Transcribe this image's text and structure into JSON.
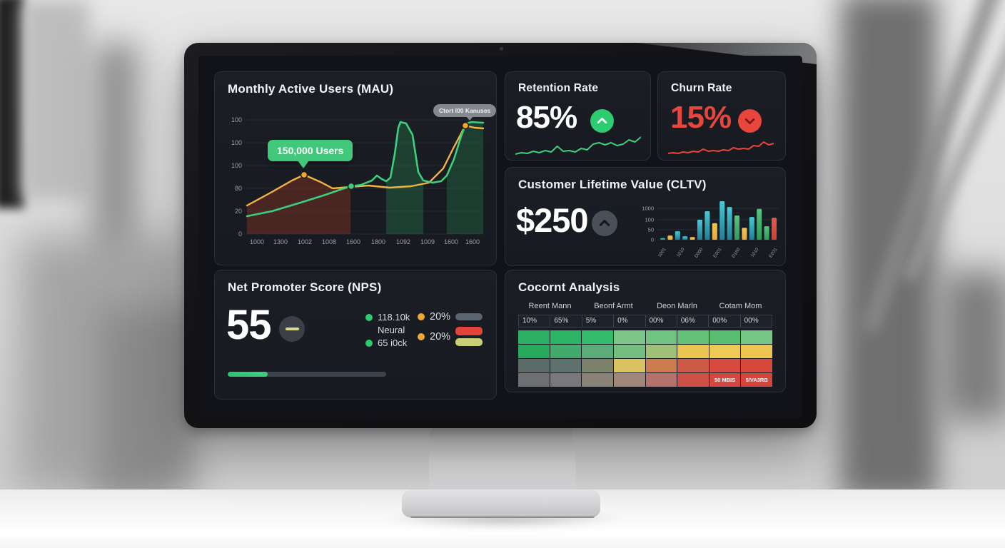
{
  "mau": {
    "title": "Monthly Active Users (MAU)",
    "tooltip_label": "150,000 Users",
    "hover_label": "Ctort I00 Kanuses",
    "y_ticks": [
      "100",
      "100",
      "100",
      "80",
      "20",
      "0"
    ],
    "x_ticks": [
      "1000",
      "1300",
      "1002",
      "1008",
      "1600",
      "1800",
      "1092",
      "1009",
      "1600",
      "1600"
    ],
    "series": {
      "orange": [
        [
          37,
          139
        ],
        [
          72,
          120
        ],
        [
          100,
          104
        ],
        [
          117,
          96
        ],
        [
          140,
          106
        ],
        [
          157,
          115
        ],
        [
          182,
          113
        ],
        [
          207,
          111
        ],
        [
          237,
          114
        ],
        [
          267,
          112
        ],
        [
          292,
          107
        ],
        [
          312,
          87
        ],
        [
          327,
          57
        ],
        [
          343,
          27
        ],
        [
          356,
          30
        ],
        [
          368,
          31
        ]
      ],
      "green": [
        [
          37,
          154
        ],
        [
          72,
          147
        ],
        [
          112,
          135
        ],
        [
          147,
          124
        ],
        [
          170,
          116
        ],
        [
          183,
          112
        ],
        [
          197,
          110
        ],
        [
          212,
          104
        ],
        [
          219,
          97
        ],
        [
          226,
          102
        ],
        [
          232,
          105
        ],
        [
          238,
          100
        ],
        [
          244,
          67
        ],
        [
          249,
          30
        ],
        [
          252,
          22
        ],
        [
          260,
          24
        ],
        [
          269,
          40
        ],
        [
          277,
          92
        ],
        [
          284,
          104
        ],
        [
          297,
          107
        ],
        [
          309,
          105
        ],
        [
          317,
          97
        ],
        [
          327,
          74
        ],
        [
          337,
          42
        ],
        [
          344,
          24
        ],
        [
          352,
          22
        ],
        [
          368,
          23
        ]
      ]
    },
    "dots": {
      "orange": [
        [
          117,
          96
        ],
        [
          343,
          27
        ]
      ],
      "green": [
        [
          183,
          112
        ]
      ]
    }
  },
  "retention": {
    "title": "Retention Rate",
    "value": "85%",
    "spark": [
      29,
      27,
      28,
      25,
      27,
      24,
      26,
      18,
      25,
      24,
      26,
      21,
      23,
      15,
      13,
      16,
      13,
      17,
      15,
      9,
      12,
      5
    ]
  },
  "churn": {
    "title": "Churn Rate",
    "value": "15%",
    "spark": [
      28,
      27,
      28,
      26,
      27,
      25,
      26,
      22,
      25,
      24,
      25,
      23,
      24,
      20,
      22,
      21,
      22,
      17,
      18,
      12,
      16,
      14
    ]
  },
  "cltv": {
    "title": "Customer Lifetime Value (CLTV)",
    "value": "$250",
    "y_ticks": [
      "1000",
      "100",
      "50",
      "0"
    ],
    "x_ticks": [
      "1001",
      "1010",
      "D000",
      "E001",
      "D160",
      "1010",
      "E031"
    ],
    "bars": [
      {
        "v": 0.04,
        "c": "teal"
      },
      {
        "v": 0.11,
        "c": "yellow"
      },
      {
        "v": 0.22,
        "c": "teal"
      },
      {
        "v": 0.09,
        "c": "teal"
      },
      {
        "v": 0.07,
        "c": "yellow"
      },
      {
        "v": 0.52,
        "c": "teal"
      },
      {
        "v": 0.74,
        "c": "teal"
      },
      {
        "v": 0.43,
        "c": "yellow"
      },
      {
        "v": 1.0,
        "c": "teal"
      },
      {
        "v": 0.85,
        "c": "teal"
      },
      {
        "v": 0.63,
        "c": "green"
      },
      {
        "v": 0.31,
        "c": "yellow"
      },
      {
        "v": 0.59,
        "c": "teal"
      },
      {
        "v": 0.8,
        "c": "green"
      },
      {
        "v": 0.35,
        "c": "green"
      },
      {
        "v": 0.57,
        "c": "red"
      }
    ]
  },
  "nps": {
    "title": "Net Promoter Score (NPS)",
    "value": "55",
    "legend_col1": [
      {
        "dot": "green",
        "label": "118.10k"
      },
      {
        "dot": "",
        "label": "Neural"
      },
      {
        "dot": "green",
        "label": "65 i0ck"
      }
    ],
    "legend_col2": [
      {
        "dot": "orange",
        "label": "20%"
      },
      {
        "dot": "orange",
        "label": "20%"
      }
    ],
    "pill_colors": [
      "#59646e",
      "#e2443b",
      "#c8cf74"
    ],
    "progress_pct": 25
  },
  "cohort": {
    "title": "Cocornt Analysis",
    "headers": [
      "Reent Mann",
      "Beonf Armt",
      "Deon Marln",
      "Cotam Mom"
    ],
    "percent_row": [
      "10%",
      "65%",
      "5%",
      "0%",
      "00%",
      "06%",
      "00%",
      "00%"
    ],
    "rows": [
      [
        "#2cb164",
        "#2db465",
        "#33ba6a",
        "#7cc787",
        "#70c47f",
        "#66c178",
        "#58bd70",
        "#76c684"
      ],
      [
        "#27a95e",
        "#42aa6c",
        "#5daa7a",
        "#74bd81",
        "#9fc077",
        "#e9c650",
        "#ecca53",
        "#eec551"
      ],
      [
        "#5b6c68",
        "#5f716c",
        "#7b8069",
        "#dbc261",
        "#cd7b4e",
        "#cd5a45",
        "#d74a3e",
        "#d7473c"
      ],
      [
        "#6e6f73",
        "#7a787b",
        "#8b8277",
        "#a1867a",
        "#b5716b",
        "#cd4f45",
        "#d4483f",
        "#d6453c"
      ]
    ],
    "bottom_labels": [
      "50 MBIS",
      "5/VA3RB"
    ]
  },
  "colors": {
    "green": "#3ecf7e",
    "red": "#e8453c",
    "orange": "#f3b33e",
    "teal_top": "#49c9d6",
    "teal_bottom": "#1f7f96",
    "bar_green_top": "#58c47e",
    "bar_green_bottom": "#2f9a5d",
    "bar_yellow_top": "#f3c54f",
    "bar_yellow_bottom": "#e8a93e",
    "bar_red_top": "#e65a4c",
    "bar_red_bottom": "#d23f35"
  }
}
